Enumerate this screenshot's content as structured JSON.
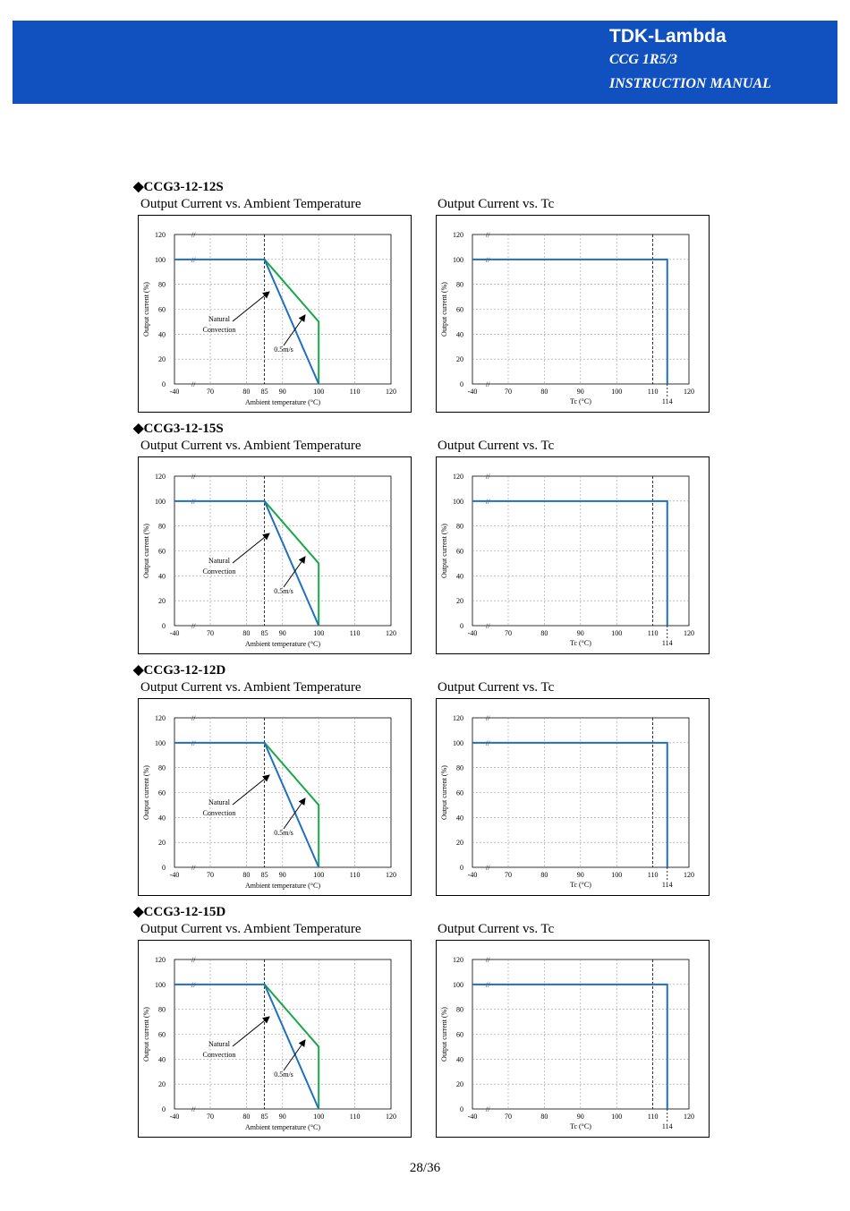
{
  "header": {
    "brand": "TDK-Lambda",
    "model": "CCG 1R5/3",
    "doc_type": "INSTRUCTION MANUAL",
    "bg_color": "#1050bf"
  },
  "footer": {
    "page": "28/36"
  },
  "colors": {
    "natural": "#1f6fbf",
    "airflow": "#1aa84a"
  },
  "sections": [
    {
      "title": "◆CCG3-12-12S",
      "ambient_title": "Output Current vs. Ambient Temperature",
      "tc_title": "Output Current vs. Tc"
    },
    {
      "title": "◆CCG3-12-15S",
      "ambient_title": "Output Current vs. Ambient Temperature",
      "tc_title": "Output Current vs. Tc"
    },
    {
      "title": "◆CCG3-12-12D",
      "ambient_title": "Output Current vs. Ambient Temperature",
      "tc_title": "Output Current vs. Tc"
    },
    {
      "title": "◆CCG3-12-15D",
      "ambient_title": "Output Current vs. Ambient Temperature",
      "tc_title": "Output Current vs. Tc"
    }
  ],
  "chart_data": [
    {
      "type": "line",
      "chart": "ambient",
      "xlabel": "Ambient temperature (°C)",
      "ylabel": "Output current (%)",
      "x_ticks": [
        "-40",
        "70",
        "80",
        "85",
        "90",
        "100",
        "110",
        "120"
      ],
      "y_ticks": [
        "0",
        "20",
        "40",
        "60",
        "80",
        "100",
        "120"
      ],
      "ylim": [
        0,
        120
      ],
      "grid": true,
      "series": [
        {
          "name": "Natural Convection",
          "x": [
            -40,
            85,
            100,
            100
          ],
          "y": [
            100,
            100,
            0,
            0
          ]
        },
        {
          "name": "0.5m/s",
          "x": [
            85,
            100,
            100
          ],
          "y": [
            100,
            50,
            0
          ]
        }
      ],
      "annotations": [
        "Natural",
        "Convection",
        "0.5m/s"
      ]
    },
    {
      "type": "line",
      "chart": "tc",
      "xlabel": "Tc (°C)",
      "ylabel": "Output current (%)",
      "x_ticks": [
        "-40",
        "70",
        "80",
        "90",
        "100",
        "110",
        "120"
      ],
      "extra_tick": "114",
      "y_ticks": [
        "0",
        "20",
        "40",
        "60",
        "80",
        "100",
        "120"
      ],
      "ylim": [
        0,
        120
      ],
      "grid": true,
      "series": [
        {
          "x": [
            -40,
            114,
            114
          ],
          "y": [
            100,
            100,
            0
          ]
        }
      ]
    }
  ]
}
